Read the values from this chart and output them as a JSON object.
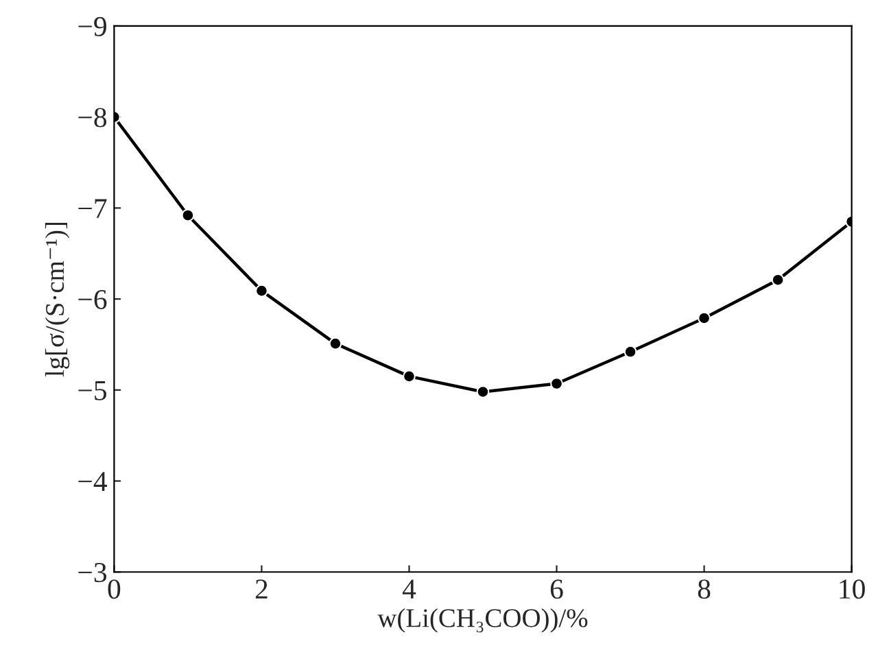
{
  "chart_data": {
    "type": "line",
    "xlabel": "w(Li(CH₃COO))/%",
    "ylabel": "lg[σ/(S·cm⁻¹)]",
    "x": [
      0,
      1,
      2,
      3,
      4,
      5,
      6,
      7,
      8,
      9,
      10
    ],
    "series": [
      {
        "color": "#000000",
        "values": [
          -8.0,
          -6.92,
          -6.09,
          -5.51,
          -5.15,
          -4.98,
          -5.07,
          -5.42,
          -5.79,
          -6.21,
          -6.85
        ]
      }
    ],
    "xlim": [
      0,
      10
    ],
    "xticks": [
      0,
      2,
      4,
      6,
      8,
      10
    ],
    "ylim": [
      -3,
      -9
    ],
    "yticks": [
      -9,
      -8,
      -7,
      -6,
      -5,
      -4,
      -3
    ],
    "marker": "circle",
    "line_style": "solid",
    "grid": false,
    "legend": false
  }
}
